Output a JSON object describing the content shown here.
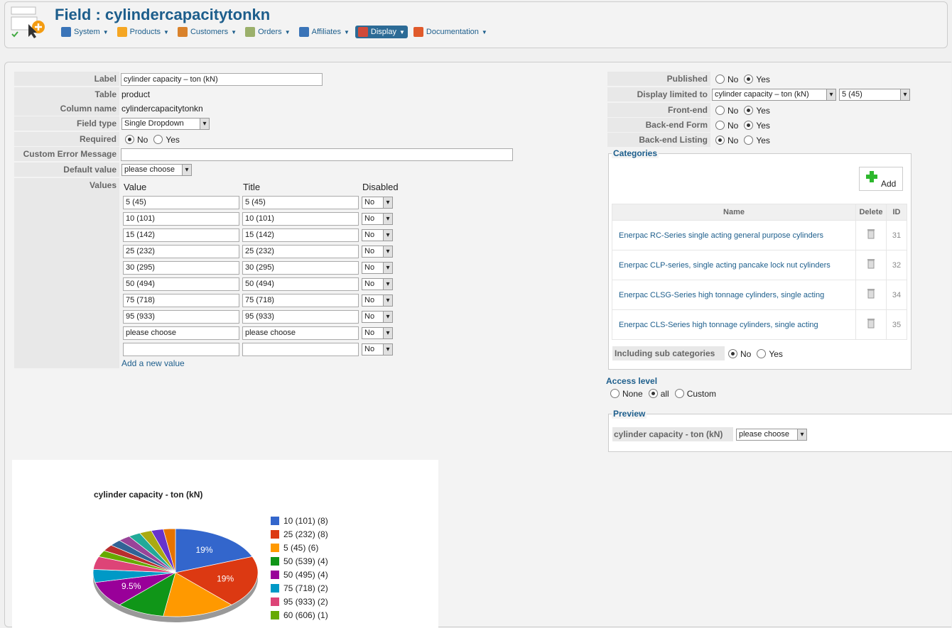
{
  "header": {
    "title": "Field : cylindercapacitytonkn",
    "menu": [
      {
        "label": "System",
        "icon": "tools-icon",
        "color": "#3a74b8"
      },
      {
        "label": "Products",
        "icon": "box-icon",
        "color": "#f5a623"
      },
      {
        "label": "Customers",
        "icon": "users-icon",
        "color": "#d9822b"
      },
      {
        "label": "Orders",
        "icon": "document-icon",
        "color": "#9bb06b"
      },
      {
        "label": "Affiliates",
        "icon": "affiliate-icon",
        "color": "#3a74b8"
      },
      {
        "label": "Display",
        "icon": "display-icon",
        "color": "#d04a3a",
        "active": true
      },
      {
        "label": "Documentation",
        "icon": "lifebuoy-icon",
        "color": "#e05a2b"
      }
    ]
  },
  "form": {
    "label_label": "Label",
    "label_value": "cylinder capacity – ton (kN)",
    "table_label": "Table",
    "table_value": "product",
    "column_label": "Column name",
    "column_value": "cylindercapacitytonkn",
    "fieldtype_label": "Field type",
    "fieldtype_value": "Single Dropdown",
    "required_label": "Required",
    "no": "No",
    "yes": "Yes",
    "error_label": "Custom Error Message",
    "error_value": "",
    "default_label": "Default value",
    "default_value": "please choose",
    "values_label": "Values",
    "col_value": "Value",
    "col_title": "Title",
    "col_disabled": "Disabled",
    "values": [
      {
        "v": "5 (45)",
        "t": "5 (45)",
        "d": "No"
      },
      {
        "v": "10 (101)",
        "t": "10 (101)",
        "d": "No"
      },
      {
        "v": "15 (142)",
        "t": "15 (142)",
        "d": "No"
      },
      {
        "v": "25 (232)",
        "t": "25 (232)",
        "d": "No"
      },
      {
        "v": "30 (295)",
        "t": "30 (295)",
        "d": "No"
      },
      {
        "v": "50 (494)",
        "t": "50 (494)",
        "d": "No"
      },
      {
        "v": "75 (718)",
        "t": "75 (718)",
        "d": "No"
      },
      {
        "v": "95 (933)",
        "t": "95 (933)",
        "d": "No"
      },
      {
        "v": "please choose",
        "t": "please choose",
        "d": "No"
      },
      {
        "v": "",
        "t": "",
        "d": "No"
      }
    ],
    "add_value": "Add a new value"
  },
  "right": {
    "published": "Published",
    "display_limited": "Display limited to",
    "limit_field": "cylinder capacity – ton (kN)",
    "limit_value": "5 (45)",
    "frontend": "Front-end",
    "backend_form": "Back-end Form",
    "backend_listing": "Back-end Listing",
    "no": "No",
    "yes": "Yes",
    "categories_title": "Categories",
    "add": "Add",
    "col_name": "Name",
    "col_delete": "Delete",
    "col_id": "ID",
    "categories": [
      {
        "name": "Enerpac RC-Series single acting general purpose cylinders",
        "id": "31"
      },
      {
        "name": "Enerpac CLP-series, single acting pancake lock nut cylinders",
        "id": "32"
      },
      {
        "name": "Enerpac CLSG-Series high tonnage cylinders, single acting",
        "id": "34"
      },
      {
        "name": "Enerpac CLS-Series high tonnage cylinders, single acting",
        "id": "35"
      }
    ],
    "including_sub": "Including sub categories",
    "access_title": "Access level",
    "access_none": "None",
    "access_all": "all",
    "access_custom": "Custom",
    "preview_title": "Preview",
    "preview_label": "cylinder capacity - ton (kN)",
    "preview_value": "please choose"
  },
  "chart_data": {
    "type": "pie",
    "title": "cylinder capacity - ton (kN)",
    "legend": "right",
    "slices": [
      {
        "name": "10 (101) (8)",
        "value": 8,
        "color": "#3366cc",
        "label": "19%"
      },
      {
        "name": "25 (232) (8)",
        "value": 8,
        "color": "#dc3912",
        "label": "19%"
      },
      {
        "name": "5 (45) (6)",
        "value": 6,
        "color": "#ff9900",
        "label": ""
      },
      {
        "name": "50 (539) (4)",
        "value": 4,
        "color": "#109618",
        "label": ""
      },
      {
        "name": "50 (495) (4)",
        "value": 4,
        "color": "#990099",
        "label": "9.5%"
      },
      {
        "name": "75 (718) (2)",
        "value": 2,
        "color": "#0099c6",
        "label": ""
      },
      {
        "name": "95 (933) (2)",
        "value": 2,
        "color": "#dd4477",
        "label": ""
      },
      {
        "name": "60 (606) (1)",
        "value": 1,
        "color": "#66aa00",
        "label": ""
      },
      {
        "name": "",
        "value": 1,
        "color": "#b82e2e",
        "label": ""
      },
      {
        "name": "",
        "value": 1,
        "color": "#316395",
        "label": ""
      },
      {
        "name": "",
        "value": 1,
        "color": "#994499",
        "label": ""
      },
      {
        "name": "",
        "value": 1,
        "color": "#22aa99",
        "label": ""
      },
      {
        "name": "",
        "value": 1,
        "color": "#aaaa11",
        "label": ""
      },
      {
        "name": "",
        "value": 1,
        "color": "#6633cc",
        "label": ""
      },
      {
        "name": "",
        "value": 1,
        "color": "#e67300",
        "label": ""
      }
    ]
  }
}
